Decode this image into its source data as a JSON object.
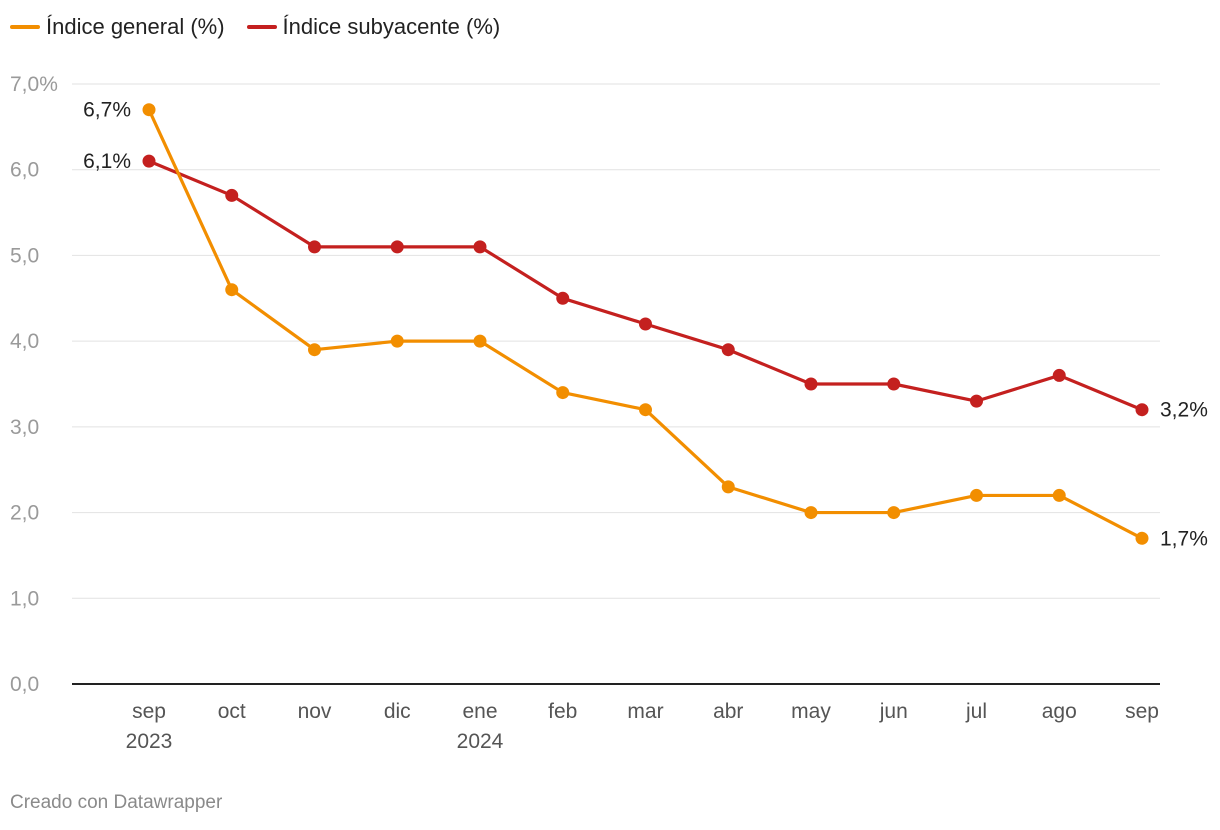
{
  "chart_data": {
    "type": "line",
    "x": [
      {
        "month": "sep",
        "year": "2023"
      },
      {
        "month": "oct",
        "year": ""
      },
      {
        "month": "nov",
        "year": ""
      },
      {
        "month": "dic",
        "year": ""
      },
      {
        "month": "ene",
        "year": "2024"
      },
      {
        "month": "feb",
        "year": ""
      },
      {
        "month": "mar",
        "year": ""
      },
      {
        "month": "abr",
        "year": ""
      },
      {
        "month": "may",
        "year": ""
      },
      {
        "month": "jun",
        "year": ""
      },
      {
        "month": "jul",
        "year": ""
      },
      {
        "month": "ago",
        "year": ""
      },
      {
        "month": "sep",
        "year": ""
      }
    ],
    "series": [
      {
        "name": "Índice general (%)",
        "color": "#f28e00",
        "values": [
          6.7,
          4.6,
          3.9,
          4.0,
          4.0,
          3.4,
          3.2,
          2.3,
          2.0,
          2.0,
          2.2,
          2.2,
          1.7
        ],
        "start_label": "6,7%",
        "end_label": "1,7%"
      },
      {
        "name": "Índice subyacente (%)",
        "color": "#c4201f",
        "values": [
          6.1,
          5.7,
          5.1,
          5.1,
          5.1,
          4.5,
          4.2,
          3.9,
          3.5,
          3.5,
          3.3,
          3.6,
          3.2
        ],
        "start_label": "6,1%",
        "end_label": "3,2%"
      }
    ],
    "ylim": [
      0,
      7
    ],
    "yticks": [
      {
        "value": 0,
        "label": "0,0"
      },
      {
        "value": 1,
        "label": "1,0"
      },
      {
        "value": 2,
        "label": "2,0"
      },
      {
        "value": 3,
        "label": "3,0"
      },
      {
        "value": 4,
        "label": "4,0"
      },
      {
        "value": 5,
        "label": "5,0"
      },
      {
        "value": 6,
        "label": "6,0"
      },
      {
        "value": 7,
        "label": "7,0%"
      }
    ],
    "grid": true,
    "legend_position": "top-left"
  },
  "footer": {
    "credit": "Creado con Datawrapper"
  }
}
